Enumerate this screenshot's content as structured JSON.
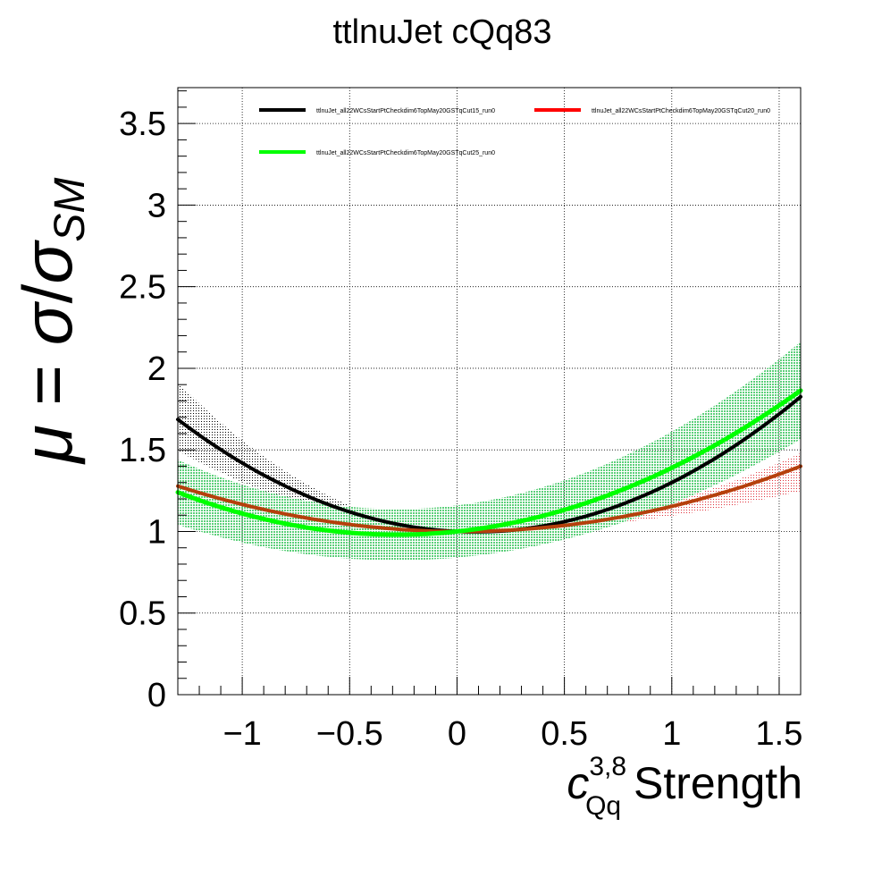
{
  "chart_data": {
    "type": "line",
    "title": "ttlnuJet cQq83",
    "xlabel": {
      "symbol": "c",
      "superscript": "3,8",
      "subscript": "Qq",
      "suffix": " Strength"
    },
    "ylabel": {
      "mu": "μ",
      "equals": " = ",
      "sigma": "σ",
      "slash": "/",
      "sigma_sm": "σ",
      "sm": "SM"
    },
    "xlim": [
      -1.3,
      1.6
    ],
    "ylim": [
      0,
      3.72
    ],
    "xticks": [
      -1,
      -0.5,
      0,
      0.5,
      1,
      1.5
    ],
    "xtick_labels": [
      "−1",
      "−0.5",
      "0",
      "0.5",
      "1",
      "1.5"
    ],
    "yticks": [
      0,
      0.5,
      1,
      1.5,
      2,
      2.5,
      3,
      3.5
    ],
    "ytick_labels": [
      "0",
      "0.5",
      "1",
      "1.5",
      "2",
      "2.5",
      "3",
      "3.5"
    ],
    "grid": true,
    "legend_placement": "top",
    "series": [
      {
        "name": "ttlnuJet_all22WCsStartPtCheckdim6TopMay20GSTqCut15_run0",
        "color": "#000000",
        "quad_coeff": 0.36,
        "lin_coeff": -0.06,
        "band_lower_scale": 0.72,
        "band_upper_scale": 1.33,
        "band_color": "#000000"
      },
      {
        "name": "ttlnuJet_all22WCsStartPtCheckdim6TopMay20GSTqCut20_run0",
        "color": "#ff0000",
        "quad_coeff": 0.16,
        "lin_coeff": -0.006,
        "band_lower_scale": 0.62,
        "band_upper_scale": 1.2,
        "band_color": "#ff0000"
      },
      {
        "name": "ttlnuJet_all22WCsStartPtCheckdim6TopMay20GSTqCut25_run0",
        "color": "#00ff00",
        "quad_coeff": 0.25,
        "lin_coeff": 0.14,
        "band_rel": 0.16,
        "band_color": "#3cb371"
      }
    ]
  }
}
